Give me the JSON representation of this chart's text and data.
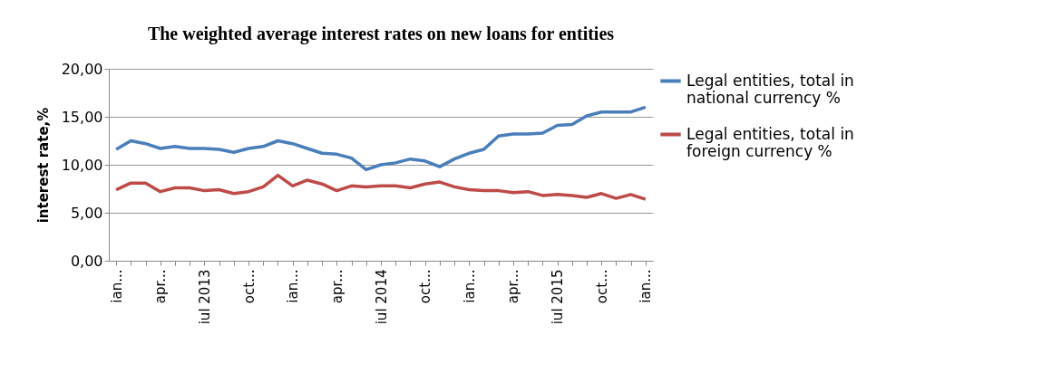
{
  "chart_data": {
    "type": "line",
    "title": "The weighted average interest rates on new loans for entities",
    "ylabel": "interest rate,%",
    "categories": [
      "ian...",
      null,
      null,
      "apr...",
      null,
      null,
      "iul 2013",
      null,
      null,
      "oct...",
      null,
      null,
      "ian...",
      null,
      null,
      "apr...",
      null,
      null,
      "iul 2014",
      null,
      null,
      "oct...",
      null,
      null,
      "ian...",
      null,
      null,
      "apr...",
      null,
      null,
      "iul 2015",
      null,
      null,
      "oct...",
      null,
      null,
      "ian..."
    ],
    "series": [
      {
        "name": "Legal entities, total in national currency  %",
        "color": "#4a7ebb",
        "values": [
          11.6,
          12.5,
          12.2,
          11.7,
          11.9,
          11.7,
          11.7,
          11.6,
          11.3,
          11.7,
          11.9,
          12.5,
          12.2,
          11.7,
          11.2,
          11.1,
          10.7,
          9.5,
          10.0,
          10.2,
          10.6,
          10.4,
          9.8,
          10.6,
          11.2,
          11.6,
          13.0,
          13.2,
          13.2,
          13.3,
          14.1,
          14.2,
          15.1,
          15.5,
          15.5,
          15.5,
          16.0
        ]
      },
      {
        "name": "Legal entities, total in foreign currency  %",
        "color": "#be4b48",
        "values": [
          7.4,
          8.1,
          8.1,
          7.2,
          7.6,
          7.6,
          7.3,
          7.4,
          7.0,
          7.2,
          7.7,
          8.9,
          7.8,
          8.4,
          8.0,
          7.3,
          7.8,
          7.7,
          7.8,
          7.8,
          7.6,
          8.0,
          8.2,
          7.7,
          7.4,
          7.3,
          7.3,
          7.1,
          7.2,
          6.8,
          6.9,
          6.8,
          6.6,
          7.0,
          6.5,
          6.9,
          6.4
        ]
      }
    ],
    "ylim": [
      0,
      20
    ],
    "yticks": [
      {
        "value": 0,
        "label": "0,00"
      },
      {
        "value": 5,
        "label": "5,00"
      },
      {
        "value": 10,
        "label": "10,00"
      },
      {
        "value": 15,
        "label": "15,00"
      },
      {
        "value": 20,
        "label": "20,00"
      }
    ],
    "grid": "y",
    "legend": "right",
    "marker": "none",
    "line_style": "solid"
  }
}
